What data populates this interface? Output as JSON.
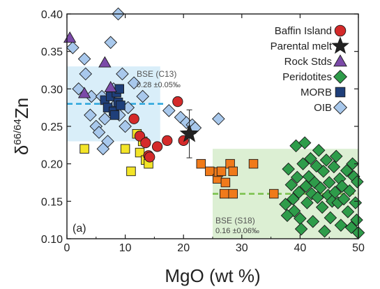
{
  "chart_data": {
    "type": "scatter",
    "title": "",
    "xlabel": "MgO (wt %)",
    "ylabel": {
      "base": "δ",
      "sup": "66/64",
      "tail": "Zn"
    },
    "xlim": [
      0,
      50
    ],
    "ylim": [
      0.1,
      0.4
    ],
    "xticks": [
      0,
      10,
      20,
      30,
      40,
      50
    ],
    "yticks": [
      0.1,
      0.15,
      0.2,
      0.25,
      0.3,
      0.35,
      0.4
    ],
    "panel_label": "(a)",
    "legend_position": "top-right",
    "bands": [
      {
        "name": "BSE (C13)",
        "value_text": "0.28 ±0.05‰",
        "x_range": [
          0,
          16
        ],
        "y_range": [
          0.23,
          0.33
        ],
        "mean": 0.28,
        "line_x": [
          0,
          17
        ],
        "fill": "#d9eef9",
        "line_color": "#2aa5dc"
      },
      {
        "name": "BSE (S18)",
        "value_text": "0.16 ±0.06‰",
        "x_range": [
          25,
          50
        ],
        "y_range": [
          0.1,
          0.22
        ],
        "mean": 0.16,
        "line_x": [
          25,
          50
        ],
        "fill": "#dcefd3",
        "line_color": "#78c04a"
      }
    ],
    "series": [
      {
        "name": "Baffin Island",
        "marker": "circle",
        "color": "#d42a2a",
        "points": [
          [
            11.5,
            0.26
          ],
          [
            12.5,
            0.237
          ],
          [
            13.5,
            0.228
          ],
          [
            14.0,
            0.211
          ],
          [
            14.2,
            0.209
          ],
          [
            15.5,
            0.223
          ],
          [
            17.2,
            0.231
          ],
          [
            19.0,
            0.283
          ],
          [
            20.0,
            0.231
          ]
        ]
      },
      {
        "name": "Parental melt",
        "marker": "star",
        "color": "#222222",
        "points": [
          [
            21.0,
            0.24
          ]
        ],
        "error_y": [
          0.032
        ]
      },
      {
        "name": "Rock Stds",
        "marker": "triangle",
        "color": "#7b4aa8",
        "points": [
          [
            0.5,
            0.368
          ],
          [
            3.0,
            0.294
          ],
          [
            6.5,
            0.335
          ],
          [
            7.5,
            0.302
          ]
        ]
      },
      {
        "name": "Peridotites",
        "marker": "diamond",
        "color": "#2e9c4a",
        "points": [
          [
            38.0,
            0.193
          ],
          [
            38.5,
            0.172
          ],
          [
            38.8,
            0.153
          ],
          [
            39.0,
            0.137
          ],
          [
            39.3,
            0.224
          ],
          [
            39.5,
            0.182
          ],
          [
            39.8,
            0.162
          ],
          [
            40.0,
            0.127
          ],
          [
            40.2,
            0.113
          ],
          [
            40.5,
            0.2
          ],
          [
            40.8,
            0.228
          ],
          [
            41.0,
            0.17
          ],
          [
            41.2,
            0.148
          ],
          [
            41.5,
            0.183
          ],
          [
            41.8,
            0.207
          ],
          [
            42.0,
            0.16
          ],
          [
            42.2,
            0.123
          ],
          [
            42.5,
            0.175
          ],
          [
            42.8,
            0.197
          ],
          [
            43.0,
            0.155
          ],
          [
            43.2,
            0.218
          ],
          [
            43.5,
            0.168
          ],
          [
            43.8,
            0.142
          ],
          [
            44.0,
            0.19
          ],
          [
            44.2,
            0.11
          ],
          [
            44.5,
            0.205
          ],
          [
            44.8,
            0.158
          ],
          [
            45.0,
            0.175
          ],
          [
            45.2,
            0.128
          ],
          [
            45.5,
            0.15
          ],
          [
            45.8,
            0.196
          ],
          [
            46.0,
            0.162
          ],
          [
            46.2,
            0.21
          ],
          [
            46.5,
            0.148
          ],
          [
            46.8,
            0.18
          ],
          [
            47.0,
            0.118
          ],
          [
            47.2,
            0.17
          ],
          [
            47.5,
            0.153
          ],
          [
            48.0,
            0.191
          ],
          [
            48.2,
            0.136
          ],
          [
            48.5,
            0.164
          ],
          [
            48.8,
            0.115
          ],
          [
            49.0,
            0.2
          ],
          [
            49.2,
            0.183
          ],
          [
            49.5,
            0.148
          ],
          [
            49.7,
            0.125
          ],
          [
            49.8,
            0.176
          ],
          [
            50.0,
            0.108
          ],
          [
            37.5,
            0.146
          ],
          [
            37.8,
            0.131
          ]
        ]
      },
      {
        "name": "MORB",
        "marker": "square",
        "color": "#1f3f7a",
        "points": [
          [
            6.5,
            0.285
          ],
          [
            7.0,
            0.275
          ],
          [
            7.5,
            0.29
          ],
          [
            8.0,
            0.27
          ],
          [
            8.5,
            0.295
          ],
          [
            8.8,
            0.282
          ],
          [
            9.0,
            0.3
          ],
          [
            9.2,
            0.278
          ],
          [
            8.2,
            0.265
          ]
        ]
      },
      {
        "name": "OIB",
        "marker": "diamond",
        "color": "#a8c8ec",
        "points": [
          [
            1.0,
            0.355
          ],
          [
            2.0,
            0.3
          ],
          [
            3.0,
            0.34
          ],
          [
            3.2,
            0.32
          ],
          [
            4.0,
            0.265
          ],
          [
            4.2,
            0.29
          ],
          [
            5.0,
            0.25
          ],
          [
            5.5,
            0.242
          ],
          [
            6.0,
            0.29
          ],
          [
            6.2,
            0.22
          ],
          [
            6.5,
            0.26
          ],
          [
            7.0,
            0.23
          ],
          [
            7.5,
            0.362
          ],
          [
            8.0,
            0.3
          ],
          [
            8.5,
            0.28
          ],
          [
            8.8,
            0.4
          ],
          [
            9.0,
            0.265
          ],
          [
            9.5,
            0.32
          ],
          [
            10.0,
            0.25
          ],
          [
            10.5,
            0.275
          ],
          [
            11.5,
            0.308
          ],
          [
            13.0,
            0.29
          ],
          [
            17.5,
            0.271
          ],
          [
            19.5,
            0.262
          ],
          [
            20.5,
            0.255
          ],
          [
            21.5,
            0.252
          ],
          [
            22.0,
            0.248
          ],
          [
            26.0,
            0.26
          ]
        ]
      },
      {
        "name": "Peridotites (orange)",
        "marker": "square",
        "color": "#f07a1a",
        "points": [
          [
            23.0,
            0.2
          ],
          [
            24.5,
            0.19
          ],
          [
            25.8,
            0.18
          ],
          [
            26.0,
            0.189
          ],
          [
            26.5,
            0.19
          ],
          [
            27.0,
            0.16
          ],
          [
            27.2,
            0.175
          ],
          [
            28.0,
            0.2
          ],
          [
            28.5,
            0.19
          ],
          [
            28.5,
            0.16
          ],
          [
            32.0,
            0.2
          ],
          [
            35.5,
            0.16
          ]
        ],
        "legend": false
      },
      {
        "name": "Yellow",
        "marker": "square",
        "color": "#f3e428",
        "points": [
          [
            3.0,
            0.22
          ],
          [
            10.0,
            0.22
          ],
          [
            11.0,
            0.19
          ],
          [
            12.0,
            0.24
          ],
          [
            12.5,
            0.215
          ],
          [
            13.0,
            0.23
          ],
          [
            13.5,
            0.205
          ],
          [
            14.0,
            0.2
          ]
        ],
        "legend": false
      }
    ],
    "legend": [
      "Baffin Island",
      "Parental melt",
      "Rock Stds",
      "Peridotites",
      "MORB",
      "OIB"
    ]
  }
}
